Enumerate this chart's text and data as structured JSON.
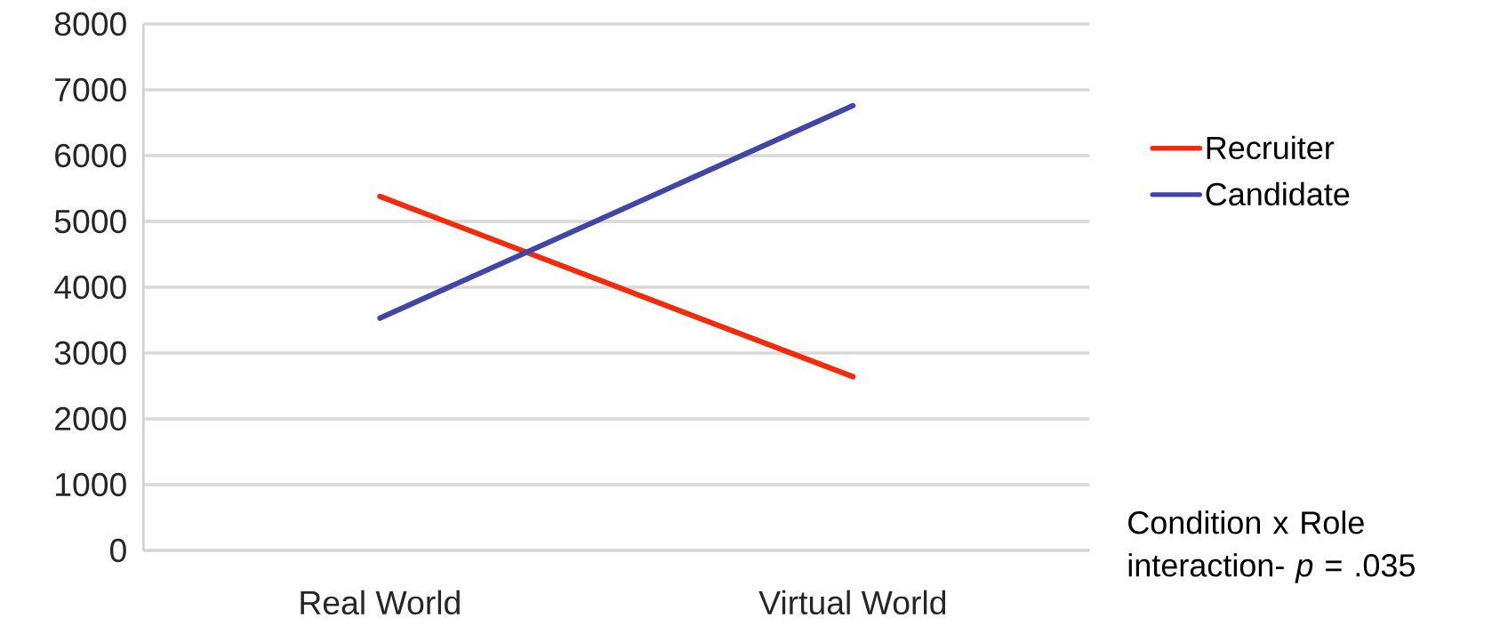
{
  "chart_data": {
    "type": "line",
    "categories": [
      "Real World",
      "Virtual World"
    ],
    "series": [
      {
        "name": "Recruiter",
        "color": "#f52a0a",
        "values": [
          5380,
          2640
        ]
      },
      {
        "name": "Candidate",
        "color": "#3f46a6",
        "values": [
          3530,
          6760
        ]
      }
    ],
    "ylim": [
      0,
      8000
    ],
    "yticks": [
      0,
      1000,
      2000,
      3000,
      4000,
      5000,
      6000,
      7000,
      8000
    ],
    "grid": "y",
    "legend": "right",
    "marker": "none",
    "line_style": "solid",
    "annotations": [
      "Condition x Role interaction- *p* = .035"
    ]
  }
}
